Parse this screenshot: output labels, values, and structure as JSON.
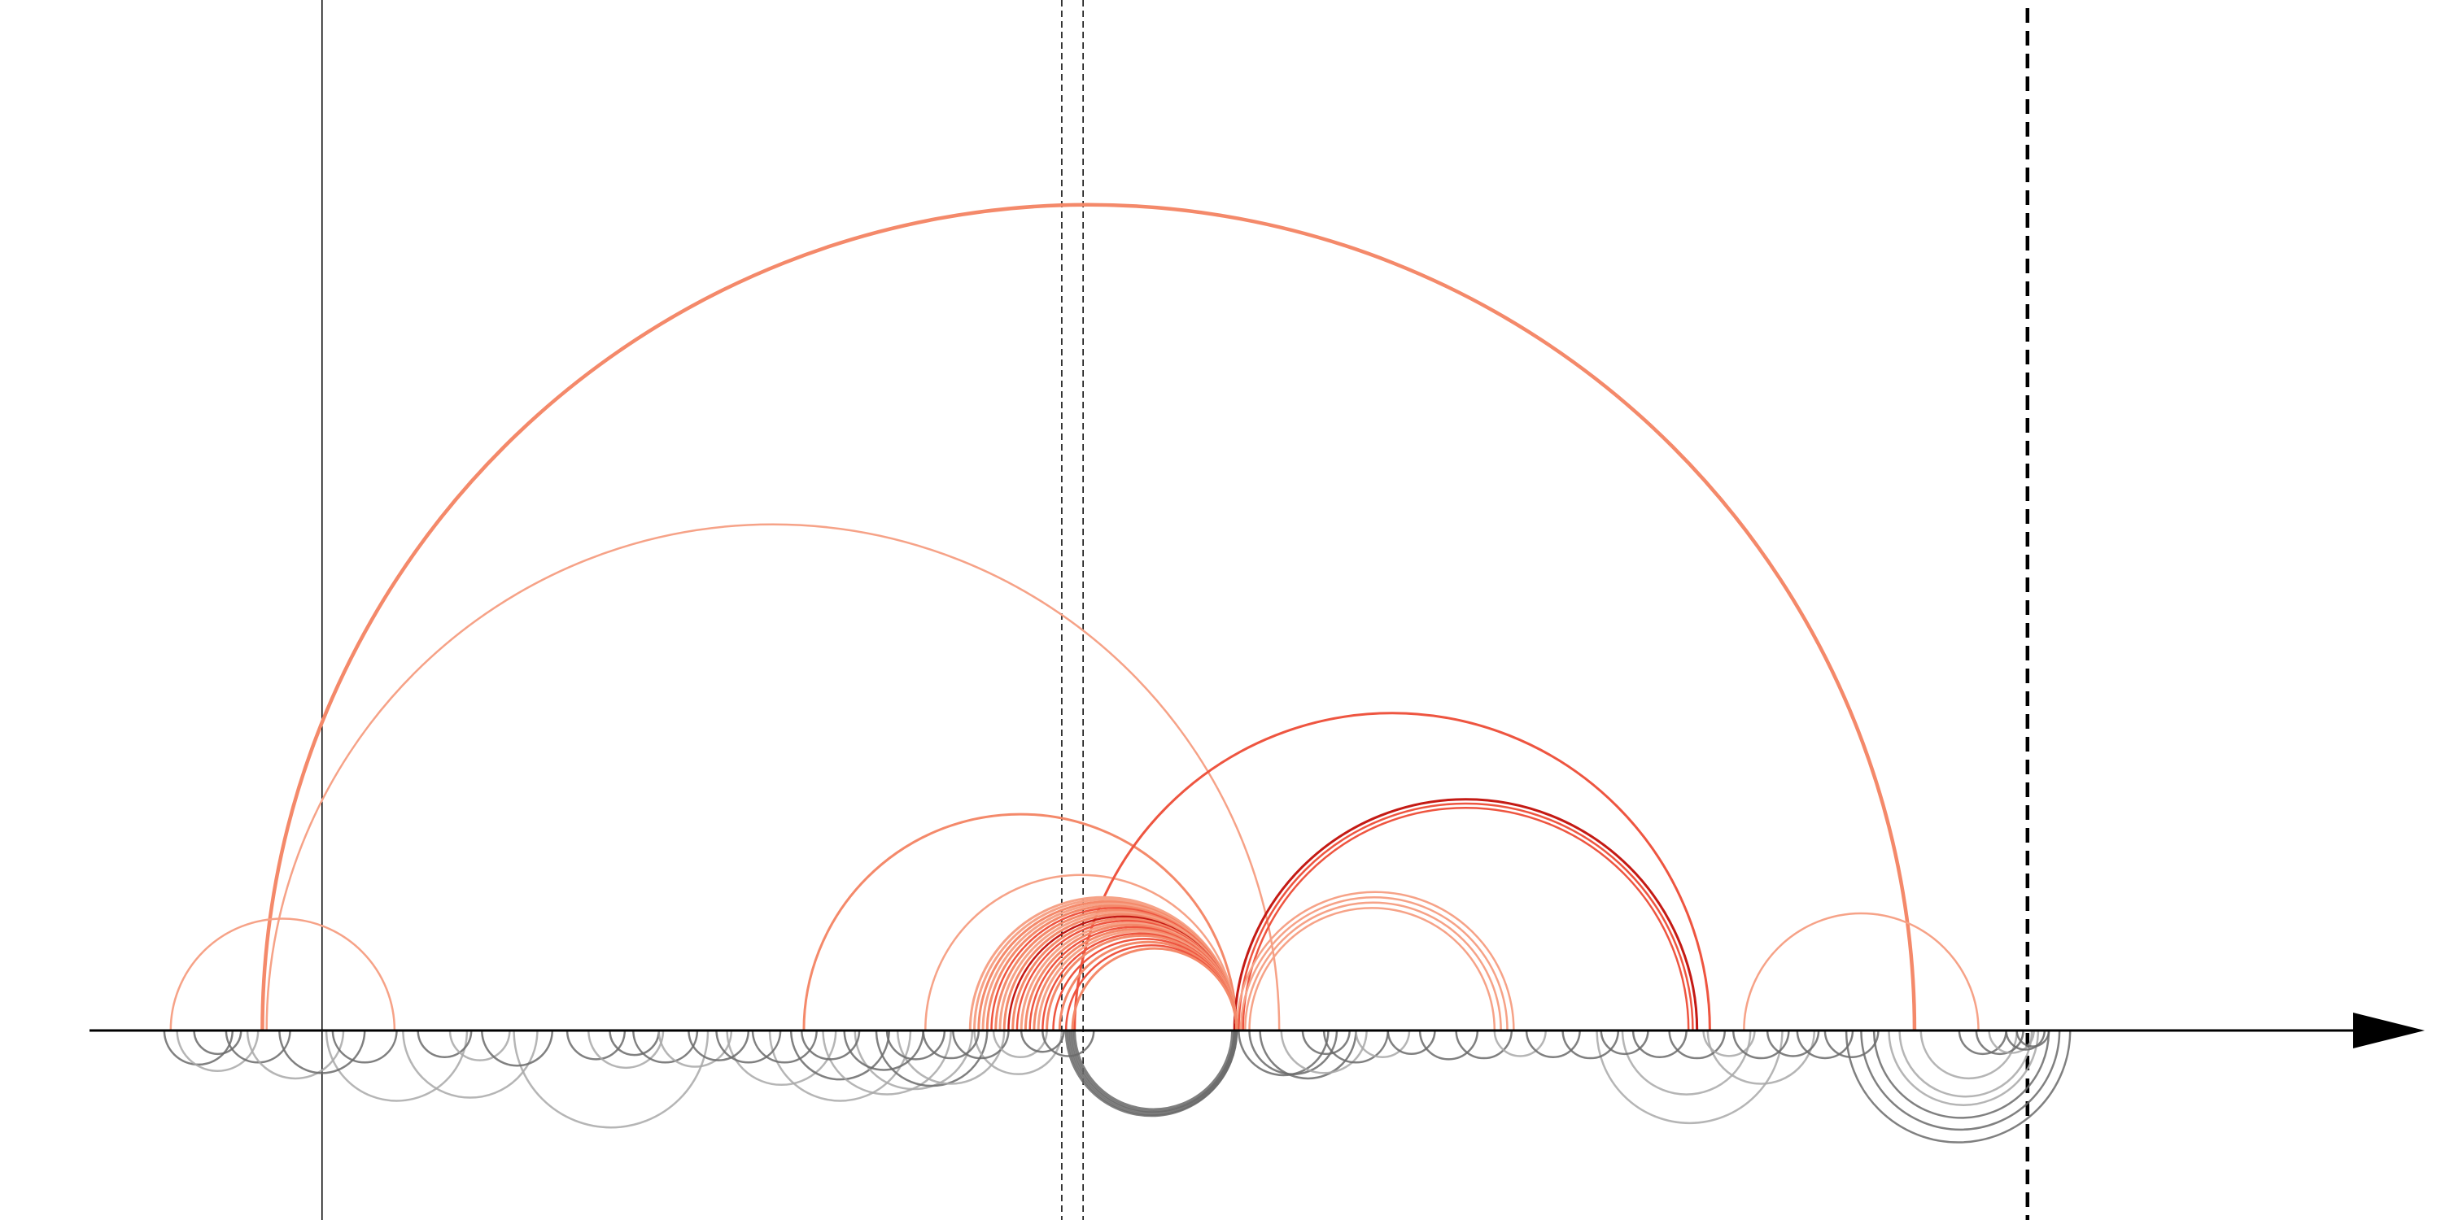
{
  "colors": {
    "axis": "#000000",
    "salmon": "#f4896a",
    "light_salmon": "#f6a287",
    "red": "#ee5540",
    "dark_red": "#c41a14",
    "gray": "#6a6a6a",
    "light_gray": "#a8a8a8"
  },
  "chart_data": {
    "type": "arc-diagram",
    "xlim": [
      0,
      1000
    ],
    "markers": {
      "thin_solid": [
        90
      ],
      "thin_dashed": [
        437,
        447
      ],
      "thick_dashed": [
        890
      ]
    },
    "arcs_above": [
      {
        "a": 62,
        "b": 837,
        "color": "salmon",
        "w": 4.5
      },
      {
        "a": 64,
        "b": 539,
        "color": "light_salmon",
        "w": 2.5
      },
      {
        "a": 19,
        "b": 124,
        "color": "light_salmon",
        "w": 2.5
      },
      {
        "a": 316,
        "b": 519,
        "color": "salmon",
        "w": 3
      },
      {
        "a": 373,
        "b": 519,
        "color": "light_salmon",
        "w": 2.5
      },
      {
        "a": 443,
        "b": 741,
        "color": "red",
        "w": 3
      },
      {
        "a": 518,
        "b": 735,
        "color": "dark_red",
        "w": 3
      },
      {
        "a": 520,
        "b": 733,
        "color": "red",
        "w": 2.5
      },
      {
        "a": 522,
        "b": 731,
        "color": "red",
        "w": 2.5
      },
      {
        "a": 519,
        "b": 649,
        "color": "light_salmon",
        "w": 2.5
      },
      {
        "a": 521,
        "b": 646,
        "color": "light_salmon",
        "w": 2.5
      },
      {
        "a": 523,
        "b": 643,
        "color": "light_salmon",
        "w": 2.5
      },
      {
        "a": 525,
        "b": 640,
        "color": "light_salmon",
        "w": 2.5
      },
      {
        "a": 757,
        "b": 867,
        "color": "light_salmon",
        "w": 2.5
      },
      {
        "a": 394,
        "b": 519,
        "color": "light_salmon",
        "w": 3
      },
      {
        "a": 396,
        "b": 519,
        "color": "light_salmon",
        "w": 3
      },
      {
        "a": 398,
        "b": 519,
        "color": "salmon",
        "w": 3
      },
      {
        "a": 400,
        "b": 519,
        "color": "light_salmon",
        "w": 3
      },
      {
        "a": 402,
        "b": 519,
        "color": "salmon",
        "w": 3
      },
      {
        "a": 404,
        "b": 519,
        "color": "red",
        "w": 2.5
      },
      {
        "a": 406,
        "b": 519,
        "color": "salmon",
        "w": 3
      },
      {
        "a": 408,
        "b": 519,
        "color": "light_salmon",
        "w": 3
      },
      {
        "a": 410,
        "b": 519,
        "color": "salmon",
        "w": 3
      },
      {
        "a": 412,
        "b": 519,
        "color": "dark_red",
        "w": 2.5
      },
      {
        "a": 414,
        "b": 519,
        "color": "salmon",
        "w": 3
      },
      {
        "a": 416,
        "b": 519,
        "color": "red",
        "w": 2.5
      },
      {
        "a": 418,
        "b": 519,
        "color": "light_salmon",
        "w": 3
      },
      {
        "a": 420,
        "b": 519,
        "color": "salmon",
        "w": 3
      },
      {
        "a": 422,
        "b": 519,
        "color": "red",
        "w": 2.5
      },
      {
        "a": 424,
        "b": 519,
        "color": "salmon",
        "w": 3
      },
      {
        "a": 426,
        "b": 519,
        "color": "light_salmon",
        "w": 3
      },
      {
        "a": 428,
        "b": 519,
        "color": "red",
        "w": 2.5
      },
      {
        "a": 430,
        "b": 519,
        "color": "salmon",
        "w": 3
      },
      {
        "a": 433,
        "b": 519,
        "color": "red",
        "w": 2.5
      },
      {
        "a": 436,
        "b": 519,
        "color": "salmon",
        "w": 3
      },
      {
        "a": 439,
        "b": 519,
        "color": "red",
        "w": 2.5
      },
      {
        "a": 442,
        "b": 519,
        "color": "salmon",
        "w": 3
      }
    ],
    "arcs_below": [
      {
        "a": 439,
        "b": 519,
        "color": "gray",
        "w": 3
      },
      {
        "a": 440,
        "b": 519,
        "color": "gray",
        "w": 3
      },
      {
        "a": 441,
        "b": 518,
        "color": "gray",
        "w": 3
      },
      {
        "a": 442,
        "b": 518,
        "color": "gray",
        "w": 3
      },
      {
        "a": 443,
        "b": 517,
        "color": "gray",
        "w": 3
      },
      {
        "a": 180,
        "b": 271,
        "color": "light_gray",
        "w": 2.5
      },
      {
        "a": 92,
        "b": 158,
        "color": "light_gray",
        "w": 2.5
      },
      {
        "a": 128,
        "b": 191,
        "color": "light_gray",
        "w": 2.5
      },
      {
        "a": 280,
        "b": 331,
        "color": "light_gray",
        "w": 2.5
      },
      {
        "a": 300,
        "b": 366,
        "color": "light_gray",
        "w": 2.5
      },
      {
        "a": 310,
        "b": 356,
        "color": "gray",
        "w": 2.5
      },
      {
        "a": 325,
        "b": 385,
        "color": "light_gray",
        "w": 2.5
      },
      {
        "a": 340,
        "b": 395,
        "color": "light_gray",
        "w": 2.5
      },
      {
        "a": 350,
        "b": 402,
        "color": "gray",
        "w": 2.5
      },
      {
        "a": 360,
        "b": 410,
        "color": "light_gray",
        "w": 2.5
      },
      {
        "a": 396,
        "b": 437,
        "color": "light_gray",
        "w": 2.5
      },
      {
        "a": 520,
        "b": 562,
        "color": "gray",
        "w": 2.5
      },
      {
        "a": 525,
        "b": 566,
        "color": "gray",
        "w": 2.5
      },
      {
        "a": 530,
        "b": 575,
        "color": "gray",
        "w": 2.5
      },
      {
        "a": 540,
        "b": 580,
        "color": "light_gray",
        "w": 2.5
      },
      {
        "a": 688,
        "b": 775,
        "color": "light_gray",
        "w": 2.5
      },
      {
        "a": 700,
        "b": 760,
        "color": "light_gray",
        "w": 2.5
      },
      {
        "a": 740,
        "b": 790,
        "color": "light_gray",
        "w": 2.5
      },
      {
        "a": 805,
        "b": 910,
        "color": "gray",
        "w": 2.5
      },
      {
        "a": 812,
        "b": 905,
        "color": "gray",
        "w": 2.5
      },
      {
        "a": 818,
        "b": 900,
        "color": "gray",
        "w": 2.5
      },
      {
        "a": 825,
        "b": 895,
        "color": "light_gray",
        "w": 2.5
      },
      {
        "a": 830,
        "b": 892,
        "color": "light_gray",
        "w": 2.5
      },
      {
        "a": 840,
        "b": 885,
        "color": "light_gray",
        "w": 2.5
      },
      {
        "a": 16,
        "b": 48,
        "color": "gray",
        "w": 2.5
      },
      {
        "a": 22,
        "b": 60,
        "color": "light_gray",
        "w": 2.5
      },
      {
        "a": 30,
        "b": 52,
        "color": "gray",
        "w": 2.5
      },
      {
        "a": 45,
        "b": 75,
        "color": "gray",
        "w": 2.5
      },
      {
        "a": 55,
        "b": 100,
        "color": "light_gray",
        "w": 2.5
      },
      {
        "a": 70,
        "b": 110,
        "color": "gray",
        "w": 2.5
      },
      {
        "a": 95,
        "b": 125,
        "color": "gray",
        "w": 2.5
      },
      {
        "a": 135,
        "b": 160,
        "color": "gray",
        "w": 2.5
      },
      {
        "a": 150,
        "b": 178,
        "color": "light_gray",
        "w": 2.5
      },
      {
        "a": 165,
        "b": 198,
        "color": "gray",
        "w": 2.5
      },
      {
        "a": 205,
        "b": 232,
        "color": "gray",
        "w": 2.5
      },
      {
        "a": 215,
        "b": 250,
        "color": "light_gray",
        "w": 2.5
      },
      {
        "a": 225,
        "b": 248,
        "color": "gray",
        "w": 2.5
      },
      {
        "a": 236,
        "b": 266,
        "color": "gray",
        "w": 2.5
      },
      {
        "a": 248,
        "b": 282,
        "color": "light_gray",
        "w": 2.5
      },
      {
        "a": 262,
        "b": 290,
        "color": "gray",
        "w": 2.5
      },
      {
        "a": 275,
        "b": 305,
        "color": "gray",
        "w": 2.5
      },
      {
        "a": 292,
        "b": 322,
        "color": "gray",
        "w": 2.5
      },
      {
        "a": 315,
        "b": 342,
        "color": "gray",
        "w": 2.5
      },
      {
        "a": 335,
        "b": 372,
        "color": "gray",
        "w": 2.5
      },
      {
        "a": 355,
        "b": 382,
        "color": "gray",
        "w": 2.5
      },
      {
        "a": 372,
        "b": 398,
        "color": "gray",
        "w": 2.5
      },
      {
        "a": 386,
        "b": 412,
        "color": "gray",
        "w": 2.5
      },
      {
        "a": 405,
        "b": 430,
        "color": "light_gray",
        "w": 2.5
      },
      {
        "a": 418,
        "b": 438,
        "color": "gray",
        "w": 2.5
      },
      {
        "a": 428,
        "b": 452,
        "color": "gray",
        "w": 2.5
      },
      {
        "a": 550,
        "b": 572,
        "color": "gray",
        "w": 2.5
      },
      {
        "a": 560,
        "b": 590,
        "color": "gray",
        "w": 2.5
      },
      {
        "a": 575,
        "b": 600,
        "color": "light_gray",
        "w": 2.5
      },
      {
        "a": 590,
        "b": 612,
        "color": "gray",
        "w": 2.5
      },
      {
        "a": 605,
        "b": 632,
        "color": "gray",
        "w": 2.5
      },
      {
        "a": 622,
        "b": 648,
        "color": "gray",
        "w": 2.5
      },
      {
        "a": 640,
        "b": 664,
        "color": "light_gray",
        "w": 2.5
      },
      {
        "a": 655,
        "b": 680,
        "color": "gray",
        "w": 2.5
      },
      {
        "a": 672,
        "b": 698,
        "color": "gray",
        "w": 2.5
      },
      {
        "a": 690,
        "b": 712,
        "color": "gray",
        "w": 2.5
      },
      {
        "a": 705,
        "b": 730,
        "color": "gray",
        "w": 2.5
      },
      {
        "a": 722,
        "b": 748,
        "color": "gray",
        "w": 2.5
      },
      {
        "a": 738,
        "b": 762,
        "color": "light_gray",
        "w": 2.5
      },
      {
        "a": 752,
        "b": 778,
        "color": "gray",
        "w": 2.5
      },
      {
        "a": 768,
        "b": 792,
        "color": "gray",
        "w": 2.5
      },
      {
        "a": 782,
        "b": 808,
        "color": "gray",
        "w": 2.5
      },
      {
        "a": 795,
        "b": 820,
        "color": "gray",
        "w": 2.5
      },
      {
        "a": 858,
        "b": 880,
        "color": "gray",
        "w": 2.5
      },
      {
        "a": 866,
        "b": 888,
        "color": "gray",
        "w": 2.5
      },
      {
        "a": 872,
        "b": 893,
        "color": "light_gray",
        "w": 2.5
      },
      {
        "a": 880,
        "b": 898,
        "color": "gray",
        "w": 2.5
      },
      {
        "a": 885,
        "b": 900,
        "color": "gray",
        "w": 2.5
      }
    ]
  }
}
